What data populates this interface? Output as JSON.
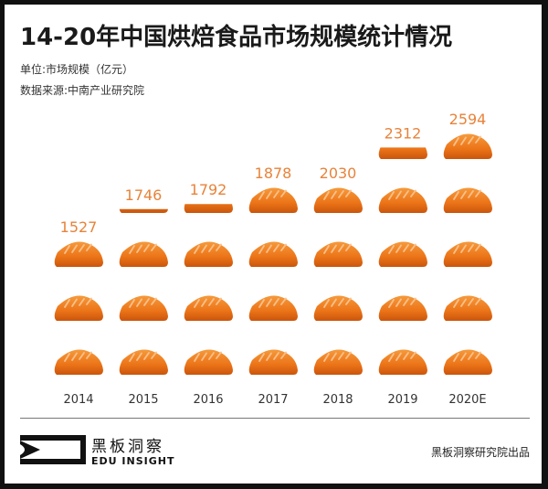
{
  "header": {
    "title": "14-20年中国烘焙食品市场规模统计情况",
    "unit": "单位:市场规模（亿元）",
    "source": "数据来源:中南产业研究院"
  },
  "chart_data": {
    "type": "bar",
    "style": "pictogram",
    "title": "14-20年中国烘焙食品市场规模统计情况",
    "xlabel": "",
    "ylabel": "市场规模（亿元）",
    "categories": [
      "2014",
      "2015",
      "2016",
      "2017",
      "2018",
      "2019",
      "2020E"
    ],
    "values": [
      1527,
      1746,
      1792,
      1878,
      2030,
      2312,
      2594
    ],
    "icon_counts": [
      3,
      3.15,
      3.35,
      4,
      4,
      4.45,
      5
    ],
    "icon": "bread-icon",
    "colors": {
      "bread": "#f07a1e",
      "bread_dark": "#c9550c",
      "label": "#e8833a",
      "axis_text": "#333333"
    }
  },
  "footer": {
    "logo_cn": "黑板洞察",
    "logo_en": "EDU INSIGHT",
    "credit": "黑板洞察研究院出品"
  }
}
